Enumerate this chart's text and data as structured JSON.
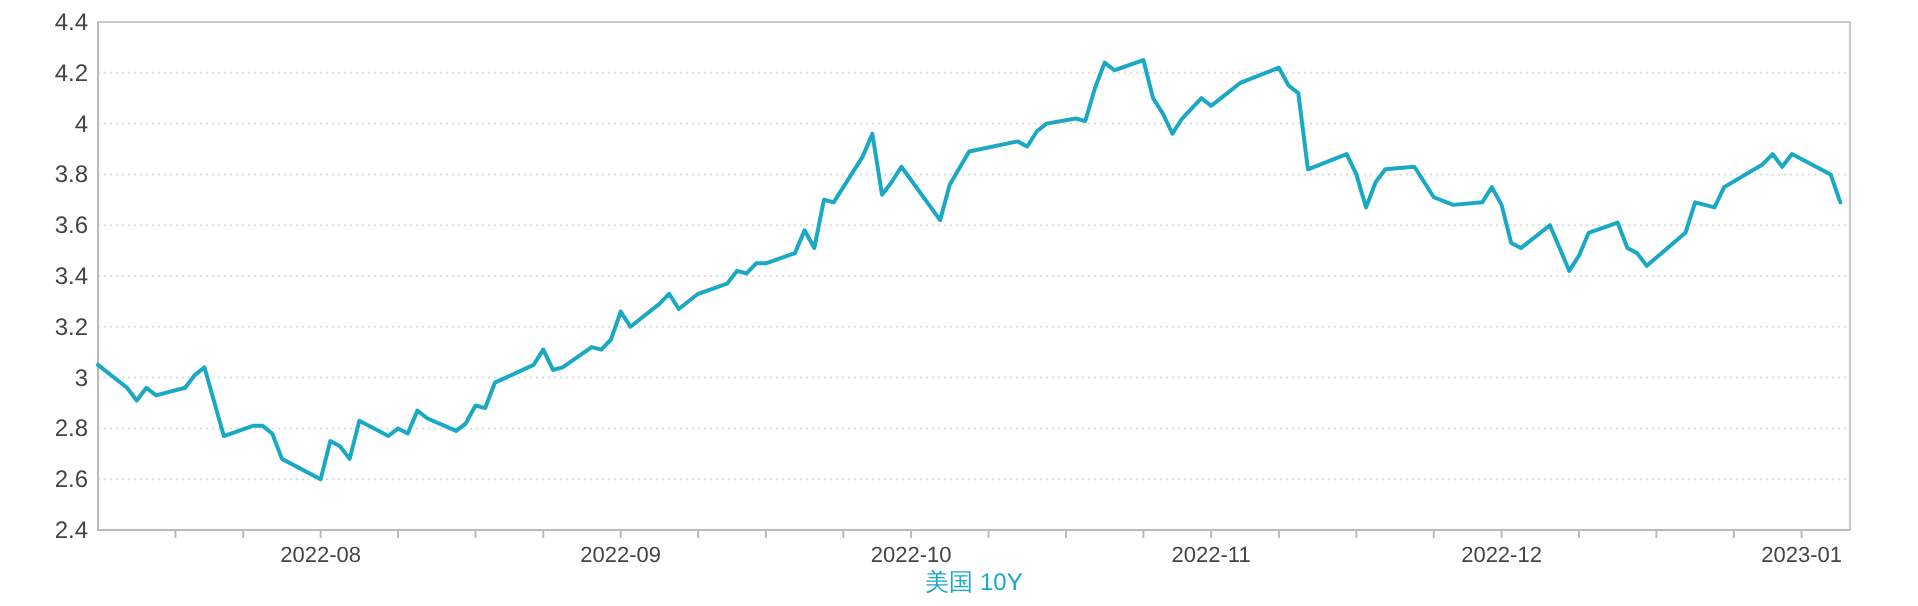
{
  "chart_data": {
    "type": "line",
    "x": [
      "2022-07-09",
      "2022-07-12",
      "2022-07-13",
      "2022-07-14",
      "2022-07-15",
      "2022-07-18",
      "2022-07-19",
      "2022-07-20",
      "2022-07-22",
      "2022-07-25",
      "2022-07-26",
      "2022-07-27",
      "2022-07-28",
      "2022-08-01",
      "2022-08-02",
      "2022-08-03",
      "2022-08-04",
      "2022-08-05",
      "2022-08-08",
      "2022-08-09",
      "2022-08-10",
      "2022-08-11",
      "2022-08-12",
      "2022-08-15",
      "2022-08-16",
      "2022-08-17",
      "2022-08-18",
      "2022-08-19",
      "2022-08-23",
      "2022-08-24",
      "2022-08-25",
      "2022-08-26",
      "2022-08-29",
      "2022-08-30",
      "2022-08-31",
      "2022-09-01",
      "2022-09-02",
      "2022-09-05",
      "2022-09-06",
      "2022-09-07",
      "2022-09-09",
      "2022-09-12",
      "2022-09-13",
      "2022-09-14",
      "2022-09-15",
      "2022-09-16",
      "2022-09-19",
      "2022-09-20",
      "2022-09-21",
      "2022-09-22",
      "2022-09-23",
      "2022-09-26",
      "2022-09-27",
      "2022-09-28",
      "2022-09-29",
      "2022-09-30",
      "2022-10-04",
      "2022-10-05",
      "2022-10-07",
      "2022-10-12",
      "2022-10-13",
      "2022-10-14",
      "2022-10-15",
      "2022-10-18",
      "2022-10-19",
      "2022-10-20",
      "2022-10-21",
      "2022-10-22",
      "2022-10-25",
      "2022-10-26",
      "2022-10-27",
      "2022-10-28",
      "2022-10-29",
      "2022-10-31",
      "2022-11-01",
      "2022-11-04",
      "2022-11-08",
      "2022-11-09",
      "2022-11-10",
      "2022-11-11",
      "2022-11-15",
      "2022-11-16",
      "2022-11-17",
      "2022-11-18",
      "2022-11-19",
      "2022-11-22",
      "2022-11-24",
      "2022-11-26",
      "2022-11-29",
      "2022-11-30",
      "2022-12-01",
      "2022-12-02",
      "2022-12-03",
      "2022-12-06",
      "2022-12-08",
      "2022-12-09",
      "2022-12-10",
      "2022-12-13",
      "2022-12-14",
      "2022-12-15",
      "2022-12-16",
      "2022-12-20",
      "2022-12-21",
      "2022-12-23",
      "2022-12-24",
      "2022-12-28",
      "2022-12-29",
      "2022-12-30",
      "2022-12-31",
      "2023-01-04",
      "2023-01-05"
    ],
    "series": [
      {
        "name": "美国 10Y",
        "color": "#1aa9c4",
        "values": [
          3.05,
          2.96,
          2.91,
          2.96,
          2.93,
          2.96,
          3.01,
          3.04,
          2.77,
          2.81,
          2.81,
          2.78,
          2.68,
          2.6,
          2.75,
          2.73,
          2.68,
          2.83,
          2.77,
          2.8,
          2.78,
          2.87,
          2.84,
          2.79,
          2.82,
          2.89,
          2.88,
          2.98,
          3.05,
          3.11,
          3.03,
          3.04,
          3.12,
          3.11,
          3.15,
          3.26,
          3.2,
          3.29,
          3.33,
          3.27,
          3.33,
          3.37,
          3.42,
          3.41,
          3.45,
          3.45,
          3.49,
          3.58,
          3.51,
          3.7,
          3.69,
          3.87,
          3.96,
          3.72,
          3.77,
          3.83,
          3.62,
          3.76,
          3.89,
          3.93,
          3.91,
          3.97,
          4.0,
          4.02,
          4.01,
          4.14,
          4.24,
          4.21,
          4.25,
          4.1,
          4.04,
          3.96,
          4.02,
          4.1,
          4.07,
          4.16,
          4.22,
          4.15,
          4.12,
          3.82,
          3.88,
          3.8,
          3.67,
          3.77,
          3.82,
          3.83,
          3.71,
          3.68,
          3.69,
          3.75,
          3.68,
          3.53,
          3.51,
          3.6,
          3.42,
          3.48,
          3.57,
          3.61,
          3.51,
          3.49,
          3.44,
          3.57,
          3.69,
          3.67,
          3.75,
          3.84,
          3.88,
          3.83,
          3.88,
          3.8,
          3.69
        ]
      }
    ],
    "xlim": [
      "2022-07-09",
      "2023-01-06"
    ],
    "xticks": [
      {
        "value": "2022-07-17",
        "label": null
      },
      {
        "value": "2022-07-24",
        "label": null
      },
      {
        "value": "2022-08-01",
        "label": "2022-08"
      },
      {
        "value": "2022-08-09",
        "label": null
      },
      {
        "value": "2022-08-17",
        "label": null
      },
      {
        "value": "2022-08-24",
        "label": null
      },
      {
        "value": "2022-09-01",
        "label": "2022-09"
      },
      {
        "value": "2022-09-09",
        "label": null
      },
      {
        "value": "2022-09-16",
        "label": null
      },
      {
        "value": "2022-09-24",
        "label": null
      },
      {
        "value": "2022-10-01",
        "label": "2022-10"
      },
      {
        "value": "2022-10-09",
        "label": null
      },
      {
        "value": "2022-10-17",
        "label": null
      },
      {
        "value": "2022-10-25",
        "label": null
      },
      {
        "value": "2022-11-01",
        "label": "2022-11"
      },
      {
        "value": "2022-11-08",
        "label": null
      },
      {
        "value": "2022-11-16",
        "label": null
      },
      {
        "value": "2022-11-24",
        "label": null
      },
      {
        "value": "2022-12-01",
        "label": "2022-12"
      },
      {
        "value": "2022-12-09",
        "label": null
      },
      {
        "value": "2022-12-17",
        "label": null
      },
      {
        "value": "2022-12-25",
        "label": null
      },
      {
        "value": "2023-01-01",
        "label": "2023-01"
      }
    ],
    "ylim": [
      2.4,
      4.4
    ],
    "yticks": [
      2.4,
      2.6,
      2.8,
      3,
      3.2,
      3.4,
      3.6,
      3.8,
      4,
      4.2,
      4.4
    ],
    "grid": "y",
    "legend": "bottom",
    "marker": "none",
    "line_style": "solid"
  }
}
